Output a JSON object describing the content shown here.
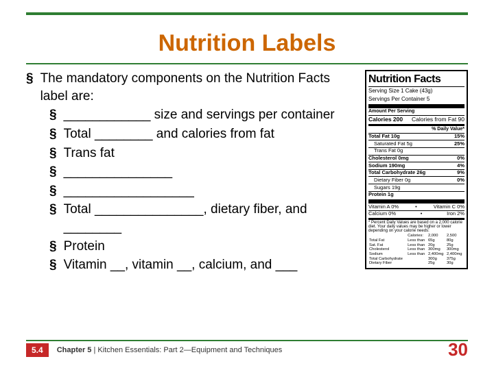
{
  "colors": {
    "title": "#cc6600",
    "rule": "#2e7d32",
    "badge": "#c62828",
    "pagenum": "#c62828"
  },
  "title": "Nutrition Labels",
  "lead": "The mandatory components on the Nutrition Facts label are:",
  "items": [
    "____________ size and servings per container",
    "Total ________ and calories from fat",
    "Trans fat",
    "_______________",
    "__________________",
    "Total _______________, dietary fiber, and ________",
    "Protein",
    "Vitamin __, vitamin __, calcium, and ___"
  ],
  "nutrition": {
    "heading": "Nutrition Facts",
    "serving_size": "Serving Size 1 Cake (43g)",
    "servings_per": "Servings Per Container 5",
    "amount_per_serving": "Amount Per Serving",
    "calories_line": "Calories 200",
    "calories_from_fat": "Calories from Fat 90",
    "pdv_header": "% Daily Value*",
    "rows": [
      {
        "label": "Total Fat 10g",
        "bold": true,
        "pct": "15%"
      },
      {
        "label": "Saturated Fat 5g",
        "indent": true,
        "pct": "25%"
      },
      {
        "label": "Trans Fat 0g",
        "indent": true,
        "pct": ""
      },
      {
        "label": "Cholesterol 0mg",
        "bold": true,
        "pct": "0%"
      },
      {
        "label": "Sodium 190mg",
        "bold": true,
        "pct": "4%"
      },
      {
        "label": "Total Carbohydrate 26g",
        "bold": true,
        "pct": "9%"
      },
      {
        "label": "Dietary Fiber 0g",
        "indent": true,
        "pct": "0%"
      },
      {
        "label": "Sugars 19g",
        "indent": true,
        "pct": ""
      },
      {
        "label": "Protein 1g",
        "bold": true,
        "pct": ""
      }
    ],
    "vitamins": [
      {
        "l": "Vitamin A 0%",
        "r": "Vitamin C 0%"
      },
      {
        "l": "Calcium 0%",
        "r": "Iron 2%"
      }
    ],
    "footnote": "* Percent Daily Values are based on a 2,000 calorie diet. Your daily values may be higher or lower depending on your calorie needs:",
    "table": [
      [
        "",
        "Calories:",
        "2,000",
        "2,500"
      ],
      [
        "Total Fat",
        "Less than",
        "65g",
        "80g"
      ],
      [
        "Sat. Fat",
        "Less than",
        "20g",
        "25g"
      ],
      [
        "Cholesterol",
        "Less than",
        "300mg",
        "300mg"
      ],
      [
        "Sodium",
        "Less than",
        "2,400mg",
        "2,400mg"
      ],
      [
        "Total Carbohydrate",
        "",
        "300g",
        "375g"
      ],
      [
        "Dietary Fiber",
        "",
        "25g",
        "30g"
      ]
    ]
  },
  "footer": {
    "section": "5.4",
    "chapter_bold": "Chapter 5",
    "chapter_rest": " | Kitchen Essentials: Part 2—Equipment and Techniques",
    "page": "30"
  }
}
